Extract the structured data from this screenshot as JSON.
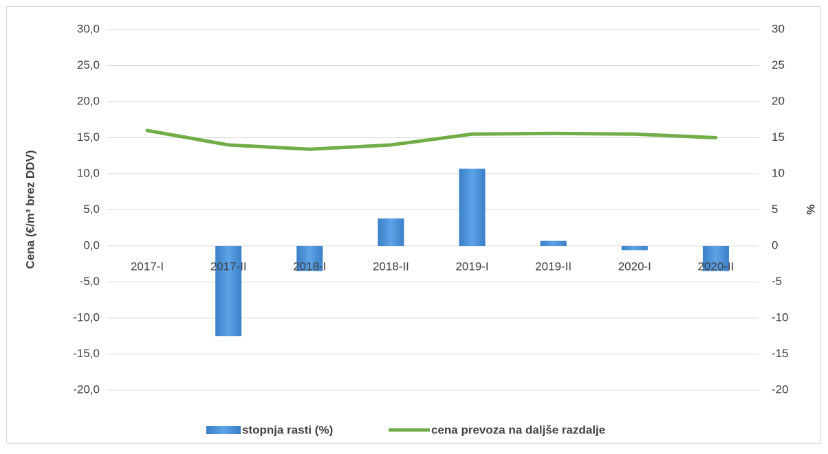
{
  "chart_data": {
    "type": "bar",
    "y_label": "Cena (€/m³ brez DDV)",
    "y2_label": "%",
    "categories": [
      "2017-I",
      "2017-II",
      "2018-I",
      "2018-II",
      "2019-I",
      "2019-II",
      "2020-I",
      "2020-II"
    ],
    "series": [
      {
        "name": "stopnja rasti (%)",
        "type": "bar",
        "axis": "y2",
        "color": "#4a8fd4",
        "values": [
          null,
          -12.5,
          -3.5,
          3.8,
          10.7,
          0.7,
          -0.6,
          -3.5
        ]
      },
      {
        "name": "cena prevoza na daljše razdalje",
        "type": "line",
        "axis": "y",
        "color": "#70ad47",
        "values": [
          16.0,
          14.0,
          13.4,
          14.0,
          15.5,
          15.6,
          15.5,
          15.0
        ]
      }
    ],
    "ylim": [
      -20,
      30
    ],
    "yticks": [
      {
        "value": -20,
        "label": "-20,0"
      },
      {
        "value": -15,
        "label": "-15,0"
      },
      {
        "value": -10,
        "label": "-10,0"
      },
      {
        "value": -5,
        "label": "-5,0"
      },
      {
        "value": 0,
        "label": "0,0"
      },
      {
        "value": 5,
        "label": "5,0"
      },
      {
        "value": 10,
        "label": "10,0"
      },
      {
        "value": 15,
        "label": "15,0"
      },
      {
        "value": 20,
        "label": "20,0"
      },
      {
        "value": 25,
        "label": "25,0"
      },
      {
        "value": 30,
        "label": "30,0"
      }
    ],
    "y2lim": [
      -20,
      30
    ],
    "y2ticks": [
      -20,
      -15,
      -10,
      -5,
      0,
      5,
      10,
      15,
      20,
      25,
      30
    ],
    "grid": true,
    "legend": "bottom"
  }
}
